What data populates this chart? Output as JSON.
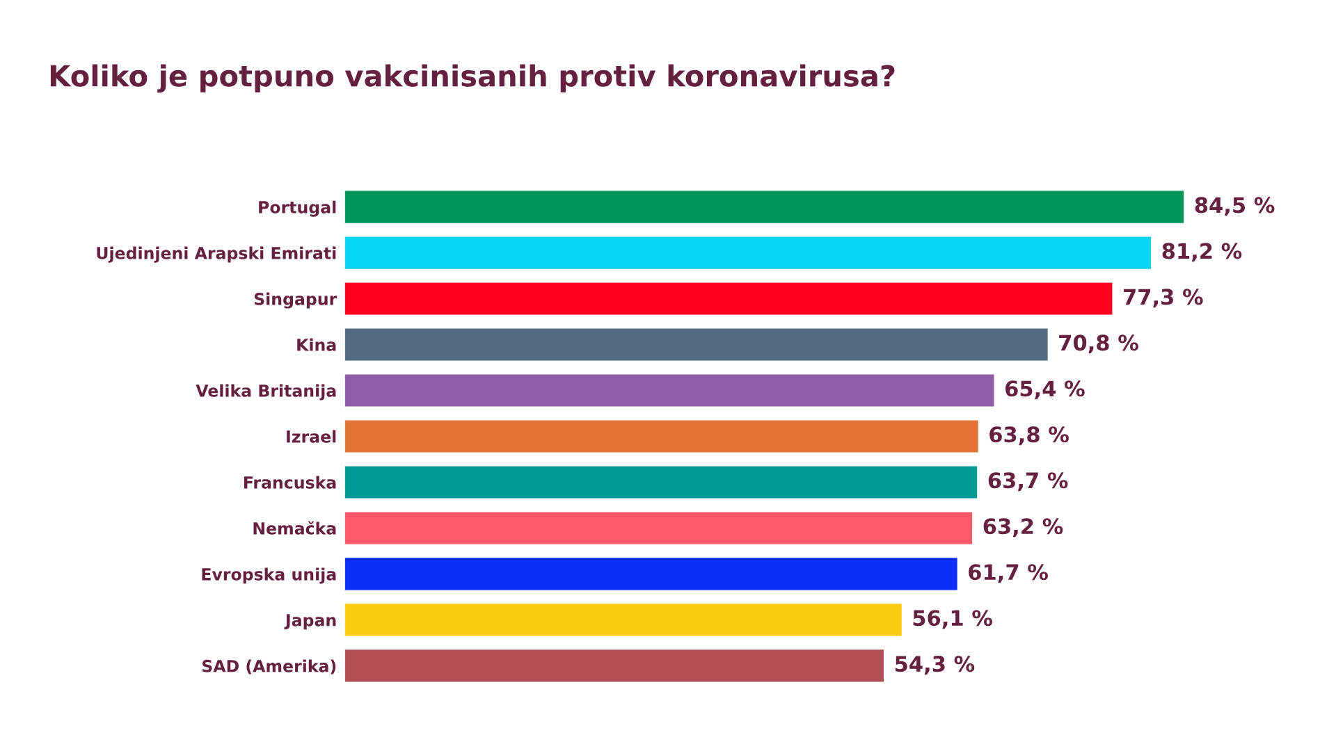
{
  "chart_data": {
    "type": "bar",
    "orientation": "horizontal",
    "title": "Koliko je potpuno vakcinisanih protiv koronavirusa?",
    "categories": [
      "Portugal",
      "Ujedinjeni Arapski Emirati",
      "Singapur",
      "Kina",
      "Velika Britanija",
      "Izrael",
      "Francuska",
      "Nemačka",
      "Evropska unija",
      "Japan",
      "SAD (Amerika)"
    ],
    "values": [
      84.5,
      81.2,
      77.3,
      70.8,
      65.4,
      63.8,
      63.7,
      63.2,
      61.7,
      56.1,
      54.3
    ],
    "value_labels": [
      "84,5 %",
      "81,2 %",
      "77,3 %",
      "70,8 %",
      "65,4 %",
      "63,8 %",
      "63,7 %",
      "63,2 %",
      "61,7 %",
      "56,1 %",
      "54,3 %"
    ],
    "colors": [
      "#00965a",
      "#08d4f4",
      "#ff0020",
      "#536a80",
      "#8f5ea6",
      "#e37334",
      "#009a92",
      "#fd5a6b",
      "#0e2dfa",
      "#f9cd0e",
      "#b05055"
    ],
    "legend": false,
    "grid": false
  }
}
